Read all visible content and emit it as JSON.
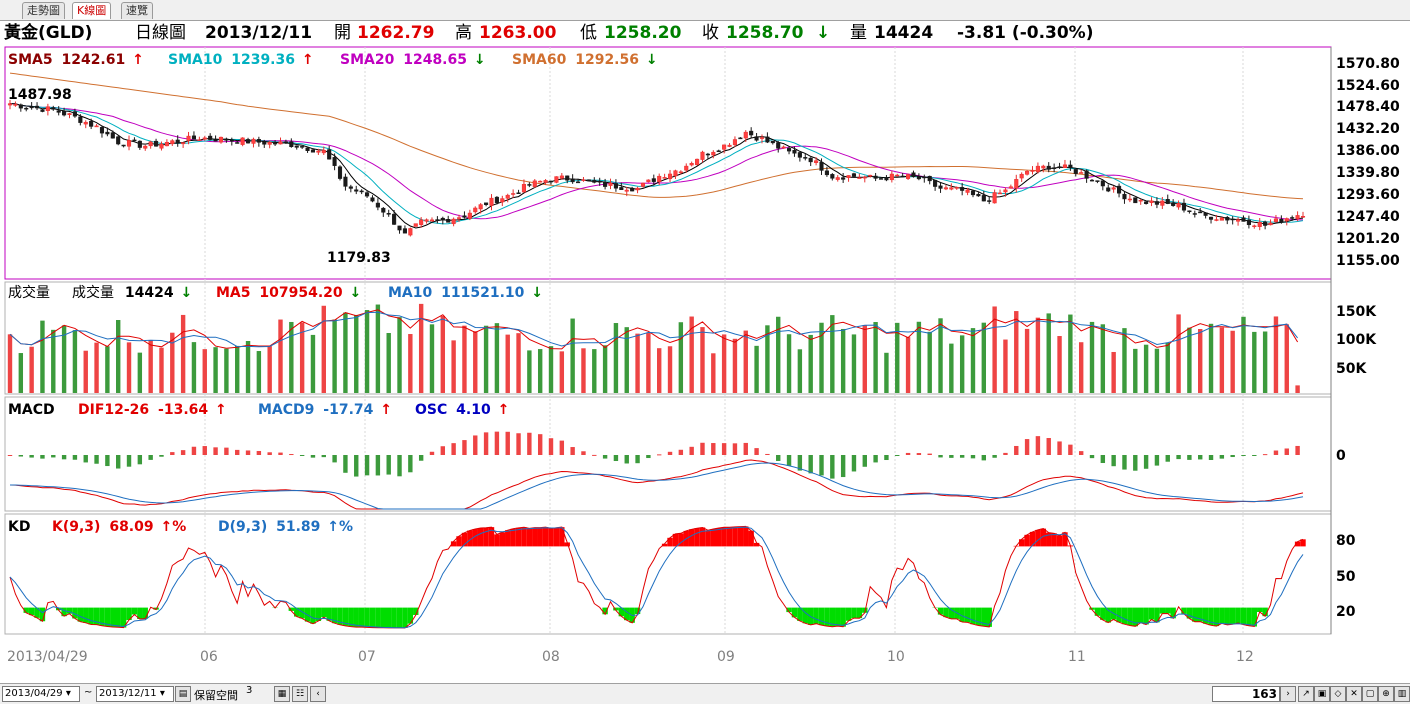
{
  "tabs": [
    "走勢圖",
    "K線圖",
    "速覽"
  ],
  "header": {
    "name": "黃金(GLD)",
    "period": "日線圖",
    "date": "2013/12/11",
    "open_label": "開",
    "open": "1262.79",
    "high_label": "高",
    "high": "1263.00",
    "low_label": "低",
    "low": "1258.20",
    "close_label": "收",
    "close": "1258.70",
    "close_arrow": "↓",
    "vol_label": "量",
    "volume": "14424",
    "change": "-3.81 (-0.30%)"
  },
  "price_panel": {
    "sma5_label": "SMA5",
    "sma5": "1242.61",
    "sma5_arrow": "↑",
    "sma10_label": "SMA10",
    "sma10": "1239.36",
    "sma10_arrow": "↑",
    "sma20_label": "SMA20",
    "sma20": "1248.65",
    "sma20_arrow": "↓",
    "sma60_label": "SMA60",
    "sma60": "1292.56",
    "sma60_arrow": "↓",
    "high_mark": "1487.98",
    "low_mark": "1179.83",
    "ticks": [
      "1570.80",
      "1524.60",
      "1478.40",
      "1432.20",
      "1386.00",
      "1339.80",
      "1293.60",
      "1247.40",
      "1201.20",
      "1155.00"
    ]
  },
  "volume_panel": {
    "title": "成交量",
    "vol_label": "成交量",
    "vol": "14424",
    "vol_arrow": "↓",
    "ma5_label": "MA5",
    "ma5": "107954.20",
    "ma5_arrow": "↓",
    "ma10_label": "MA10",
    "ma10": "111521.10",
    "ma10_arrow": "↓",
    "ticks": [
      "150K",
      "100K",
      "50K"
    ]
  },
  "macd_panel": {
    "title": "MACD",
    "dif_label": "DIF12-26",
    "dif": "-13.64",
    "dif_arrow": "↑",
    "macd_label": "MACD9",
    "macd": "-17.74",
    "macd_arrow": "↑",
    "osc_label": "OSC",
    "osc": "4.10",
    "osc_arrow": "↑",
    "ticks": [
      "0"
    ]
  },
  "kd_panel": {
    "title": "KD",
    "k_label": "K(9,3)",
    "k": "68.09",
    "k_arrow": "↑%",
    "d_label": "D(9,3)",
    "d": "51.89",
    "d_arrow": "↑%",
    "ticks": [
      "80",
      "50",
      "20"
    ]
  },
  "x_axis": {
    "labels": [
      "2013/04/29",
      "06",
      "07",
      "08",
      "09",
      "10",
      "11",
      "12"
    ]
  },
  "bottom_bar": {
    "start_date": "2013/04/29",
    "tilde": "~",
    "end_date": "2013/12/11",
    "reserve_label": "保留空間",
    "reserve_value": "3",
    "count": "163"
  },
  "colors": {
    "up": "#e83030",
    "down": "#2e8b2e",
    "frame": "#c000c0",
    "sma5": "#000000",
    "sma10": "#00b0c0",
    "sma20": "#c000c0",
    "sma60": "#d07030",
    "k": "#e00000",
    "d": "#1f6fc0"
  },
  "chart_data": {
    "type": "candlestick",
    "title": "黃金(GLD) 日線圖",
    "x_range": [
      "2013/04/29",
      "2013/12/11"
    ],
    "n_bars": 163,
    "ylim": [
      1155.0,
      1570.8
    ],
    "y_ticks": [
      1570.8,
      1524.6,
      1478.4,
      1432.2,
      1386.0,
      1339.8,
      1293.6,
      1247.4,
      1201.2,
      1155.0
    ],
    "period_high": 1487.98,
    "period_low": 1179.83,
    "last": {
      "date": "2013/12/11",
      "open": 1262.79,
      "high": 1263.0,
      "low": 1258.2,
      "close": 1258.7,
      "volume": 14424,
      "change": -3.81,
      "change_pct": -0.3
    },
    "sma": {
      "SMA5": 1242.61,
      "SMA10": 1239.36,
      "SMA20": 1248.65,
      "SMA60": 1292.56
    },
    "close_trend": [
      [
        0,
        1478
      ],
      [
        4,
        1470
      ],
      [
        8,
        1465
      ],
      [
        12,
        1450
      ],
      [
        16,
        1430
      ],
      [
        20,
        1400
      ],
      [
        25,
        1392
      ],
      [
        30,
        1400
      ],
      [
        35,
        1408
      ],
      [
        40,
        1405
      ],
      [
        45,
        1400
      ],
      [
        52,
        1395
      ],
      [
        58,
        1380
      ],
      [
        62,
        1310
      ],
      [
        66,
        1290
      ],
      [
        70,
        1250
      ],
      [
        73,
        1210
      ],
      [
        76,
        1235
      ],
      [
        80,
        1240
      ],
      [
        84,
        1250
      ],
      [
        88,
        1275
      ],
      [
        92,
        1290
      ],
      [
        96,
        1312
      ],
      [
        100,
        1325
      ],
      [
        104,
        1325
      ],
      [
        108,
        1315
      ],
      [
        112,
        1310
      ],
      [
        116,
        1305
      ],
      [
        120,
        1330
      ],
      [
        124,
        1345
      ],
      [
        128,
        1375
      ],
      [
        132,
        1392
      ],
      [
        136,
        1420
      ],
      [
        140,
        1400
      ],
      [
        144,
        1378
      ],
      [
        148,
        1365
      ],
      [
        152,
        1330
      ],
      [
        156,
        1330
      ],
      [
        160,
        1325
      ],
      [
        164,
        1330
      ],
      [
        168,
        1325
      ],
      [
        172,
        1305
      ],
      [
        176,
        1300
      ],
      [
        180,
        1280
      ],
      [
        184,
        1300
      ],
      [
        188,
        1340
      ],
      [
        192,
        1350
      ],
      [
        196,
        1345
      ],
      [
        200,
        1325
      ],
      [
        204,
        1300
      ],
      [
        208,
        1280
      ],
      [
        212,
        1275
      ],
      [
        216,
        1270
      ],
      [
        220,
        1250
      ],
      [
        224,
        1245
      ],
      [
        228,
        1240
      ],
      [
        232,
        1230
      ],
      [
        236,
        1245
      ],
      [
        240,
        1258
      ]
    ],
    "volume": {
      "ylim": [
        0,
        180000
      ],
      "y_ticks": [
        150000,
        100000,
        50000
      ],
      "last": 14424,
      "MA5": 107954.2,
      "MA10": 111521.1
    },
    "macd": {
      "DIF12-26": -13.64,
      "MACD9": -17.74,
      "OSC": 4.1
    },
    "kd": {
      "ylim": [
        0,
        100
      ],
      "y_ticks": [
        80,
        50,
        20
      ],
      "K": 68.09,
      "D": 51.89
    },
    "x_tick_labels": [
      "2013/04/29",
      "06",
      "07",
      "08",
      "09",
      "10",
      "11",
      "12"
    ]
  }
}
